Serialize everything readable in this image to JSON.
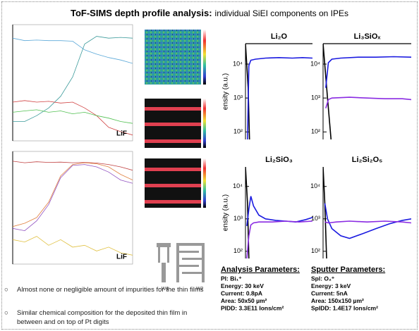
{
  "title": {
    "bold": "ToF-SIMS depth profile analysis:",
    "normal": "individual SiEI components on IPEs"
  },
  "depth_profiles": [
    {
      "type": "line",
      "label": "LiF",
      "xlim": [
        0,
        100
      ],
      "ylim": [
        1,
        1000000
      ],
      "ylog": true,
      "x": [
        0,
        10,
        20,
        30,
        40,
        50,
        60,
        70,
        80,
        90,
        100
      ],
      "series": [
        {
          "color": "#5aa8d8",
          "values": [
            200000,
            150000,
            160000,
            150000,
            150000,
            140000,
            50000,
            30000,
            20000,
            15000,
            10000
          ]
        },
        {
          "color": "#3a9a9a",
          "values": [
            10,
            10,
            20,
            50,
            200,
            2000,
            100000,
            250000,
            200000,
            220000,
            200000
          ]
        },
        {
          "color": "#d04040",
          "values": [
            100,
            120,
            100,
            110,
            90,
            100,
            50,
            20,
            5,
            3,
            2
          ]
        },
        {
          "color": "#50c050",
          "values": [
            30,
            35,
            40,
            30,
            35,
            25,
            30,
            20,
            15,
            10,
            8
          ]
        }
      ]
    },
    {
      "type": "line",
      "label": "LiF",
      "xlim": [
        0,
        100
      ],
      "ylim": [
        1,
        1000000
      ],
      "ylog": true,
      "x": [
        0,
        10,
        20,
        30,
        40,
        50,
        60,
        70,
        80,
        90,
        100
      ],
      "series": [
        {
          "color": "#c04040",
          "values": [
            300000,
            250000,
            280000,
            260000,
            270000,
            250000,
            260000,
            240000,
            200000,
            150000,
            100000
          ]
        },
        {
          "color": "#e08040",
          "values": [
            100,
            150,
            300,
            2000,
            50000,
            200000,
            250000,
            220000,
            150000,
            60000,
            30000
          ]
        },
        {
          "color": "#9050c0",
          "values": [
            80,
            60,
            200,
            1500,
            40000,
            180000,
            200000,
            150000,
            80000,
            30000,
            20000
          ]
        },
        {
          "color": "#e0c040",
          "values": [
            20,
            15,
            30,
            10,
            20,
            8,
            10,
            5,
            8,
            4,
            3
          ]
        }
      ]
    }
  ],
  "electrode_labels": [
    "W1",
    "W2"
  ],
  "chart_data": [
    {
      "type": "line",
      "title": "Li₂O",
      "ylabel": "ensity (a.u.)",
      "ylog": true,
      "xlim": [
        0,
        100
      ],
      "ylim": [
        60,
        40000
      ],
      "yticks": [
        {
          "value": 100,
          "label": "10²"
        },
        {
          "value": 1000,
          "label": "10³"
        },
        {
          "value": 10000,
          "label": "10⁴"
        }
      ],
      "series": [
        {
          "color": "#000000",
          "x": [
            0,
            4,
            6
          ],
          "values": [
            40000,
            2000,
            60
          ]
        },
        {
          "color": "#1a1ae0",
          "x": [
            3,
            5,
            8,
            15,
            30,
            50,
            70,
            85,
            100
          ],
          "values": [
            60,
            9000,
            13000,
            14000,
            15000,
            15500,
            15000,
            15500,
            15000
          ]
        }
      ]
    },
    {
      "type": "line",
      "title": "Li₃SiOₓ",
      "ylog": true,
      "xlim": [
        0,
        100
      ],
      "ylim": [
        60,
        40000
      ],
      "yticks": [
        {
          "value": 100,
          "label": "10²"
        },
        {
          "value": 1000,
          "label": "10³"
        },
        {
          "value": 10000,
          "label": "10⁴"
        }
      ],
      "series": [
        {
          "color": "#000000",
          "x": [
            0,
            5,
            9
          ],
          "values": [
            40000,
            1000,
            60
          ]
        },
        {
          "color": "#1a1ae0",
          "x": [
            3,
            6,
            10,
            20,
            40,
            60,
            80,
            100
          ],
          "values": [
            2000,
            11000,
            14000,
            15000,
            16000,
            16000,
            16500,
            16000
          ]
        },
        {
          "color": "#8a2be2",
          "x": [
            3,
            6,
            10,
            30,
            50,
            70,
            90,
            100
          ],
          "values": [
            500,
            900,
            1000,
            1050,
            1000,
            950,
            950,
            900
          ]
        }
      ]
    },
    {
      "type": "line",
      "title": "Li₂SiO₃",
      "ylabel": "ensity (a.u.)",
      "ylog": true,
      "xlim": [
        0,
        100
      ],
      "ylim": [
        60,
        40000
      ],
      "yticks": [
        {
          "value": 100,
          "label": "10²"
        },
        {
          "value": 1000,
          "label": "10³"
        },
        {
          "value": 10000,
          "label": "10⁴"
        }
      ],
      "series": [
        {
          "color": "#000000",
          "x": [
            0,
            3,
            5
          ],
          "values": [
            40000,
            3000,
            60
          ]
        },
        {
          "color": "#1a1ae0",
          "x": [
            2,
            5,
            8,
            12,
            20,
            30,
            45,
            60,
            75,
            90,
            100
          ],
          "values": [
            600,
            2000,
            5000,
            2500,
            1300,
            1000,
            900,
            850,
            800,
            950,
            1100
          ]
        },
        {
          "color": "#8a2be2",
          "x": [
            2,
            5,
            8,
            12,
            20,
            40,
            60,
            80,
            100
          ],
          "values": [
            60,
            300,
            650,
            750,
            800,
            800,
            850,
            800,
            850
          ]
        }
      ]
    },
    {
      "type": "line",
      "title": "Li₂Si₂O₅",
      "ylog": true,
      "xlim": [
        0,
        100
      ],
      "ylim": [
        60,
        40000
      ],
      "yticks": [
        {
          "value": 100,
          "label": "10²"
        },
        {
          "value": 1000,
          "label": "10³"
        },
        {
          "value": 10000,
          "label": "10⁴"
        }
      ],
      "series": [
        {
          "color": "#000000",
          "x": [
            0,
            2,
            4
          ],
          "values": [
            40000,
            3000,
            60
          ]
        },
        {
          "color": "#1a1ae0",
          "x": [
            2,
            5,
            10,
            20,
            30,
            45,
            60,
            75,
            90,
            100
          ],
          "values": [
            3000,
            1000,
            500,
            300,
            250,
            350,
            500,
            700,
            900,
            1000
          ]
        },
        {
          "color": "#8a2be2",
          "x": [
            2,
            6,
            15,
            30,
            50,
            70,
            90,
            100
          ],
          "values": [
            800,
            750,
            800,
            850,
            800,
            850,
            800,
            750
          ]
        }
      ]
    }
  ],
  "analysis_parameters": {
    "heading": "Analysis Parameters:",
    "lines": [
      "PI: Bi₁⁺",
      "Energy: 30 keV",
      "Current: 0.8pA",
      "Area: 50x50 µm²",
      "PIDD: 3.3E11 Ions/cm²"
    ]
  },
  "sputter_parameters": {
    "heading": "Sputter Parameters:",
    "lines": [
      "Spl: O₂⁺",
      "Energy: 3 keV",
      "Current: 5nA",
      "Area: 150x150 µm²",
      "SpIDD: 1.4E17 Ions/cm²"
    ]
  },
  "bullets": [
    "Almost none or negligible amount of impurities for the thin films",
    "Similar chemical composition for the deposited thin film in between and on top of Pt digits"
  ]
}
